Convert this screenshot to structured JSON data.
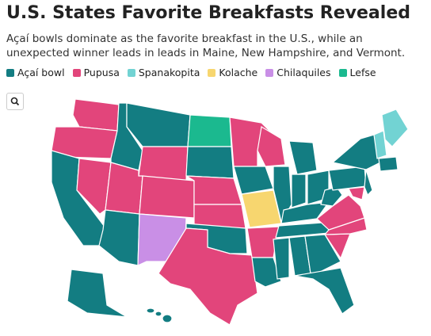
{
  "header": {
    "title": "U.S. States Favorite Breakfasts Revealed",
    "subtitle": "Açaí bowls dominate as the favorite breakfast in the U.S., while an unexpected winner leads in leads in Maine, New Hampshire, and Vermont."
  },
  "legend": [
    {
      "name": "Açaí bowl",
      "color": "#137d82"
    },
    {
      "name": "Pupusa",
      "color": "#e2457b"
    },
    {
      "name": "Spanakopita",
      "color": "#72d3d3"
    },
    {
      "name": "Kolache",
      "color": "#f7d66f"
    },
    {
      "name": "Chilaquiles",
      "color": "#c98fe6"
    },
    {
      "name": "Lefse",
      "color": "#1bb98f"
    }
  ]
}
